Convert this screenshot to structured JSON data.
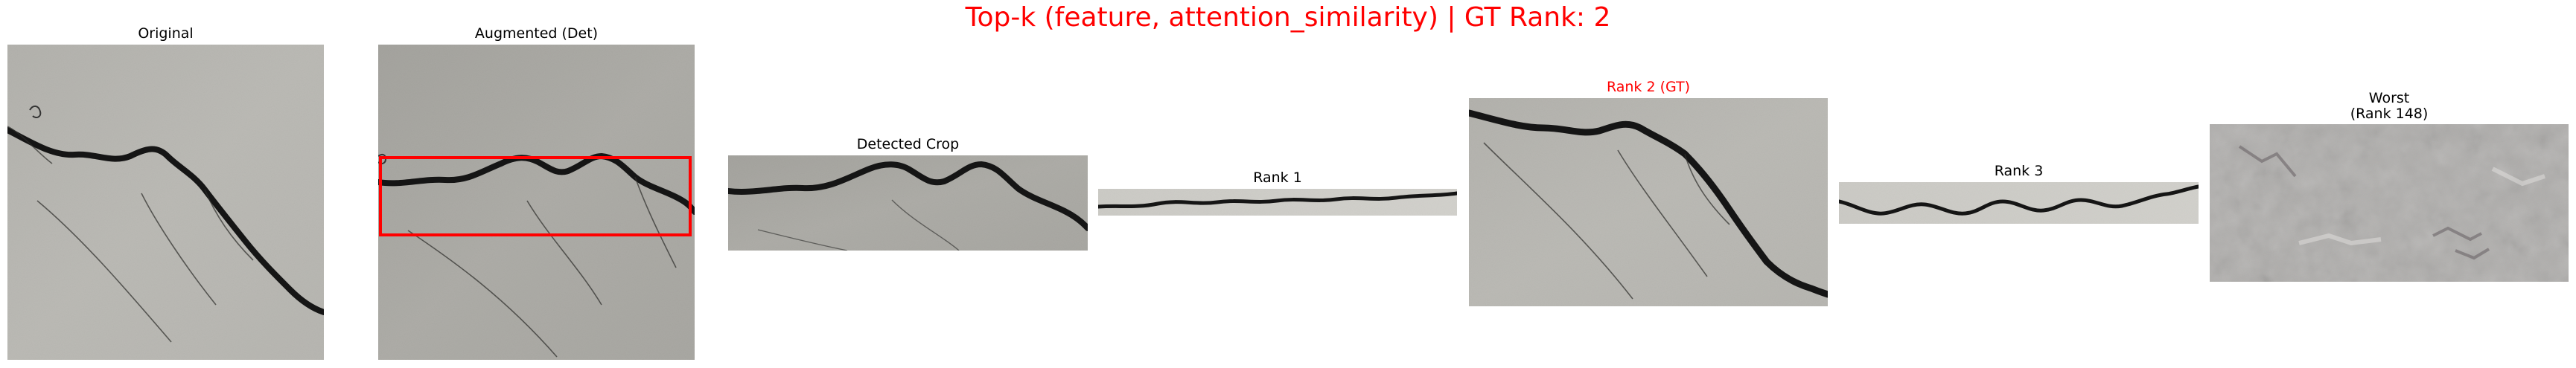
{
  "figure": {
    "title": "Top-k (feature, attention_similarity) | GT Rank: 2",
    "title_color": "#ff0000"
  },
  "panels": [
    {
      "title": "Original",
      "title_color": "#000000"
    },
    {
      "title": "Augmented (Det)",
      "title_color": "#000000"
    },
    {
      "title": "Detected Crop",
      "title_color": "#000000"
    },
    {
      "title": "Rank 1",
      "title_color": "#000000"
    },
    {
      "title": "Rank 2 (GT)",
      "title_color": "#ff0000"
    },
    {
      "title": "Rank 3",
      "title_color": "#000000"
    },
    {
      "title": "Worst",
      "subtitle": "(Rank 148)",
      "title_color": "#000000"
    }
  ],
  "detection": {
    "box_color": "#ff0000"
  }
}
